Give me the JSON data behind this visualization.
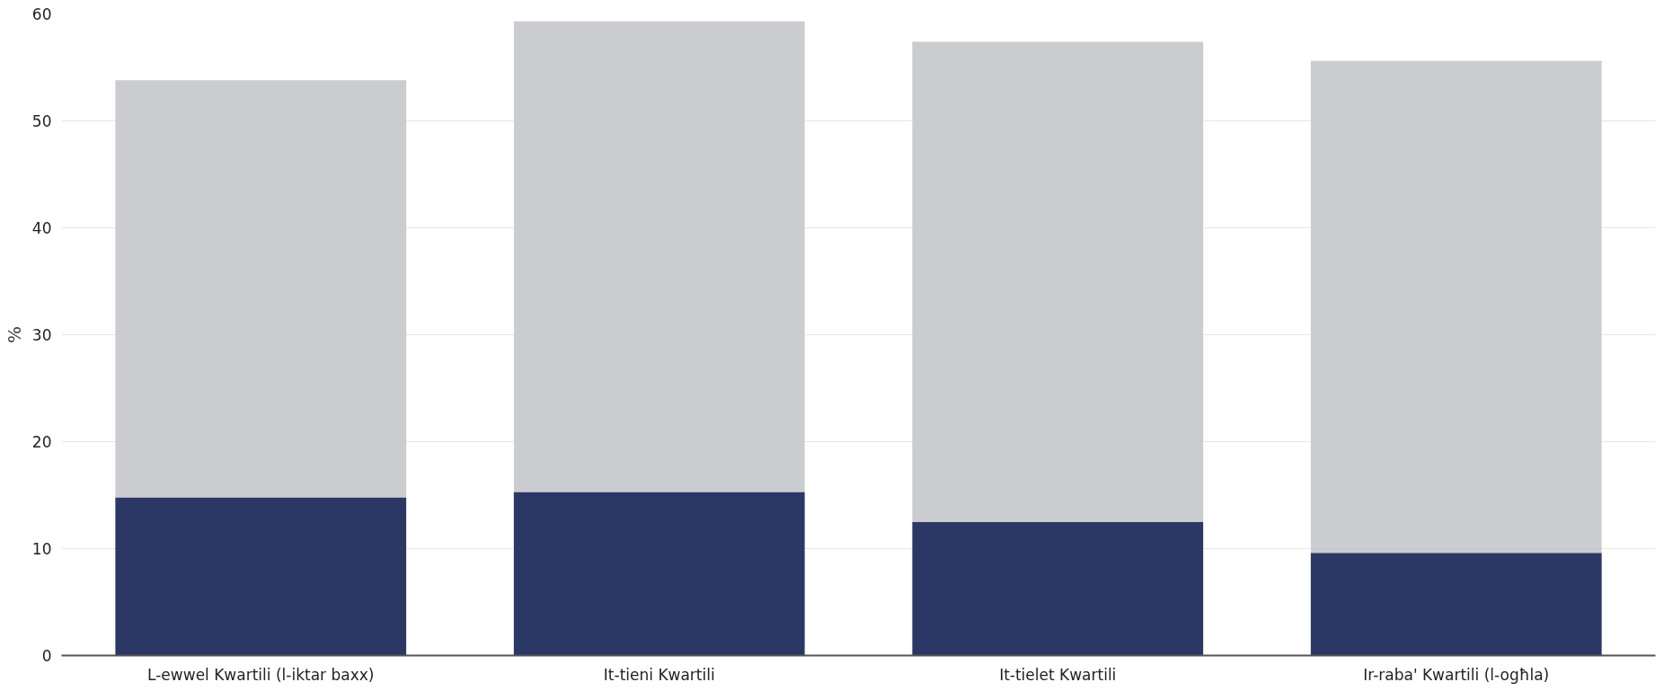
{
  "chart_data": {
    "type": "bar",
    "stacked": true,
    "ylabel": "%",
    "categories": [
      "L-ewwel Kwartili (l-iktar baxx)",
      "It-tieni Kwartili",
      "It-tielet Kwartili",
      "Ir-raba' Kwartili (l-ogħla)"
    ],
    "series": [
      {
        "color": "#2b3765",
        "values": [
          14.8,
          15.3,
          12.5,
          9.6
        ]
      },
      {
        "color": "#cacccf",
        "values": [
          39.0,
          44.0,
          44.9,
          46.0
        ]
      }
    ],
    "ylim": [
      0,
      60
    ],
    "yticks": [
      0,
      10,
      20,
      30,
      40,
      50,
      60
    ],
    "grid": "y"
  }
}
